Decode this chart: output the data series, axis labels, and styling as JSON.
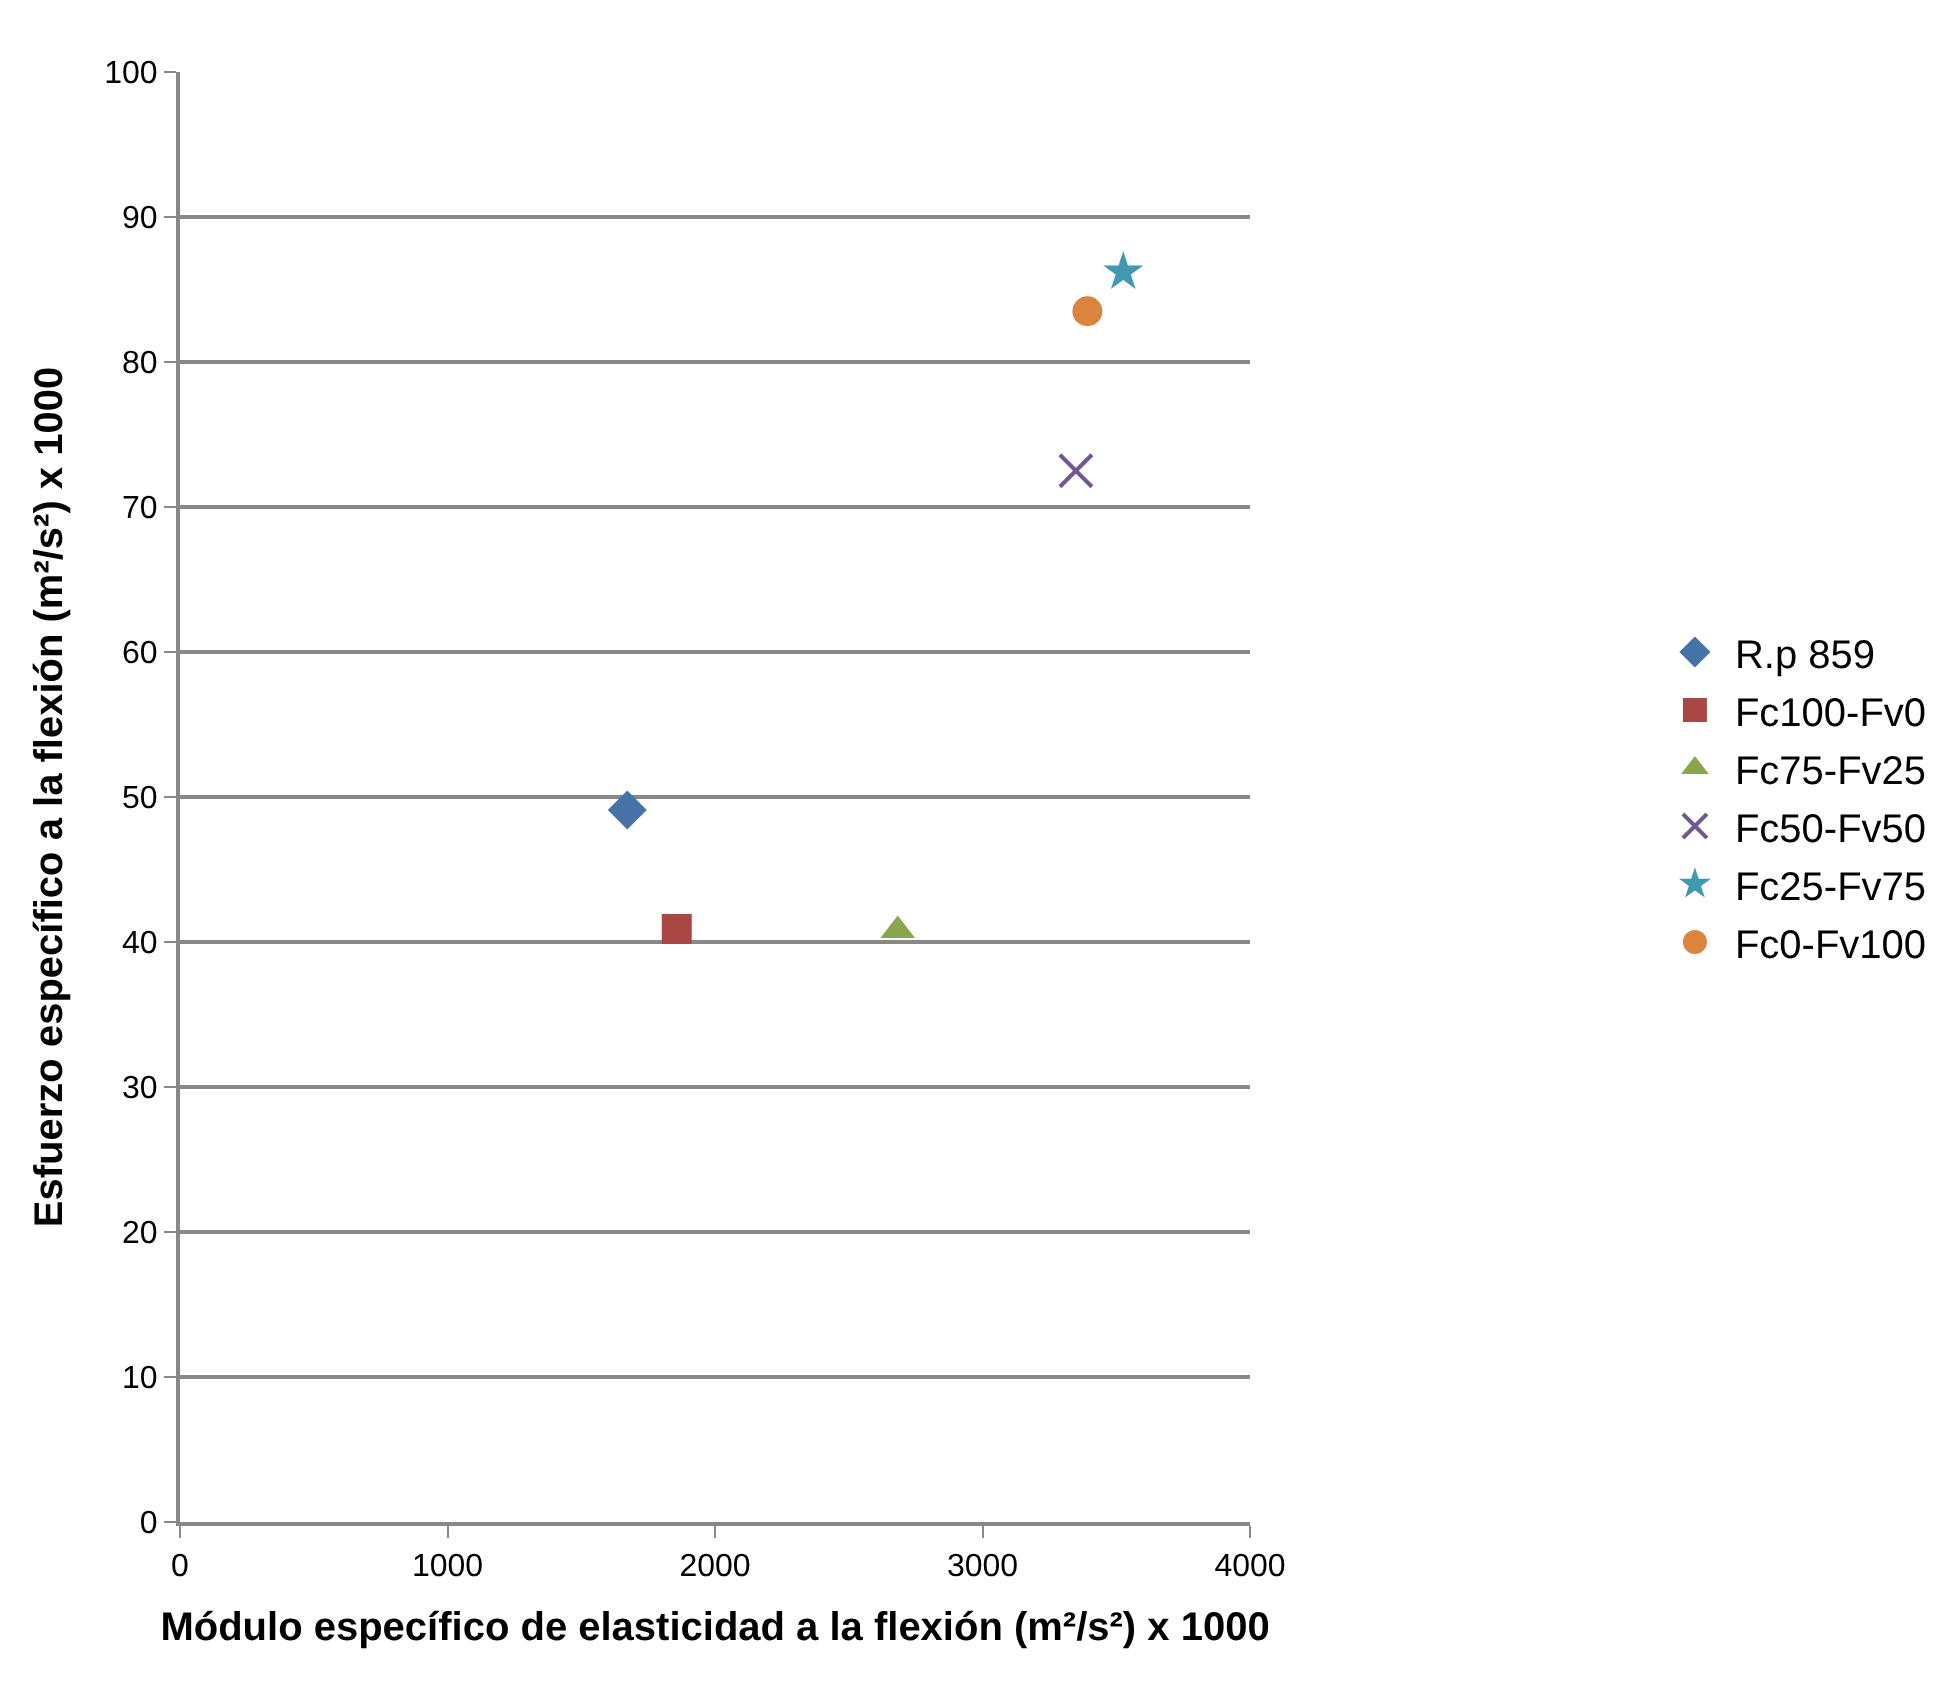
{
  "chart_data": {
    "type": "scatter",
    "xlabel": "Módulo específico de elasticidad a la flexión (m²/s²) x 1000",
    "ylabel": "Esfuerzo específico a la flexión (m²/s²) x 1000",
    "xlim": [
      0,
      4000
    ],
    "xticks": [
      0,
      1000,
      2000,
      3000,
      4000
    ],
    "ylim": [
      0,
      100
    ],
    "yticks": [
      0,
      10,
      20,
      30,
      40,
      50,
      60,
      70,
      80,
      90,
      100
    ],
    "grid": "y",
    "legend": "right",
    "series": [
      {
        "name": "R.p 859",
        "color": "#4572a7",
        "marker": "diamond",
        "x": [
          1672
        ],
        "values": [
          49.1
        ]
      },
      {
        "name": "Fc100-Fv0",
        "color": "#aa4643",
        "marker": "square",
        "x": [
          1857
        ],
        "values": [
          40.9
        ]
      },
      {
        "name": "Fc75-Fv25",
        "color": "#89a54e",
        "marker": "triangle",
        "x": [
          2683
        ],
        "values": [
          40.8
        ]
      },
      {
        "name": "Fc50-Fv50",
        "color": "#71588f",
        "marker": "cross",
        "x": [
          3349
        ],
        "values": [
          72.5
        ]
      },
      {
        "name": "Fc25-Fv75",
        "color": "#4198af",
        "marker": "star",
        "x": [
          3526
        ],
        "values": [
          86.2
        ]
      },
      {
        "name": "Fc0-Fv100",
        "color": "#db843d",
        "marker": "circle",
        "x": [
          3392
        ],
        "values": [
          83.5
        ]
      }
    ]
  }
}
